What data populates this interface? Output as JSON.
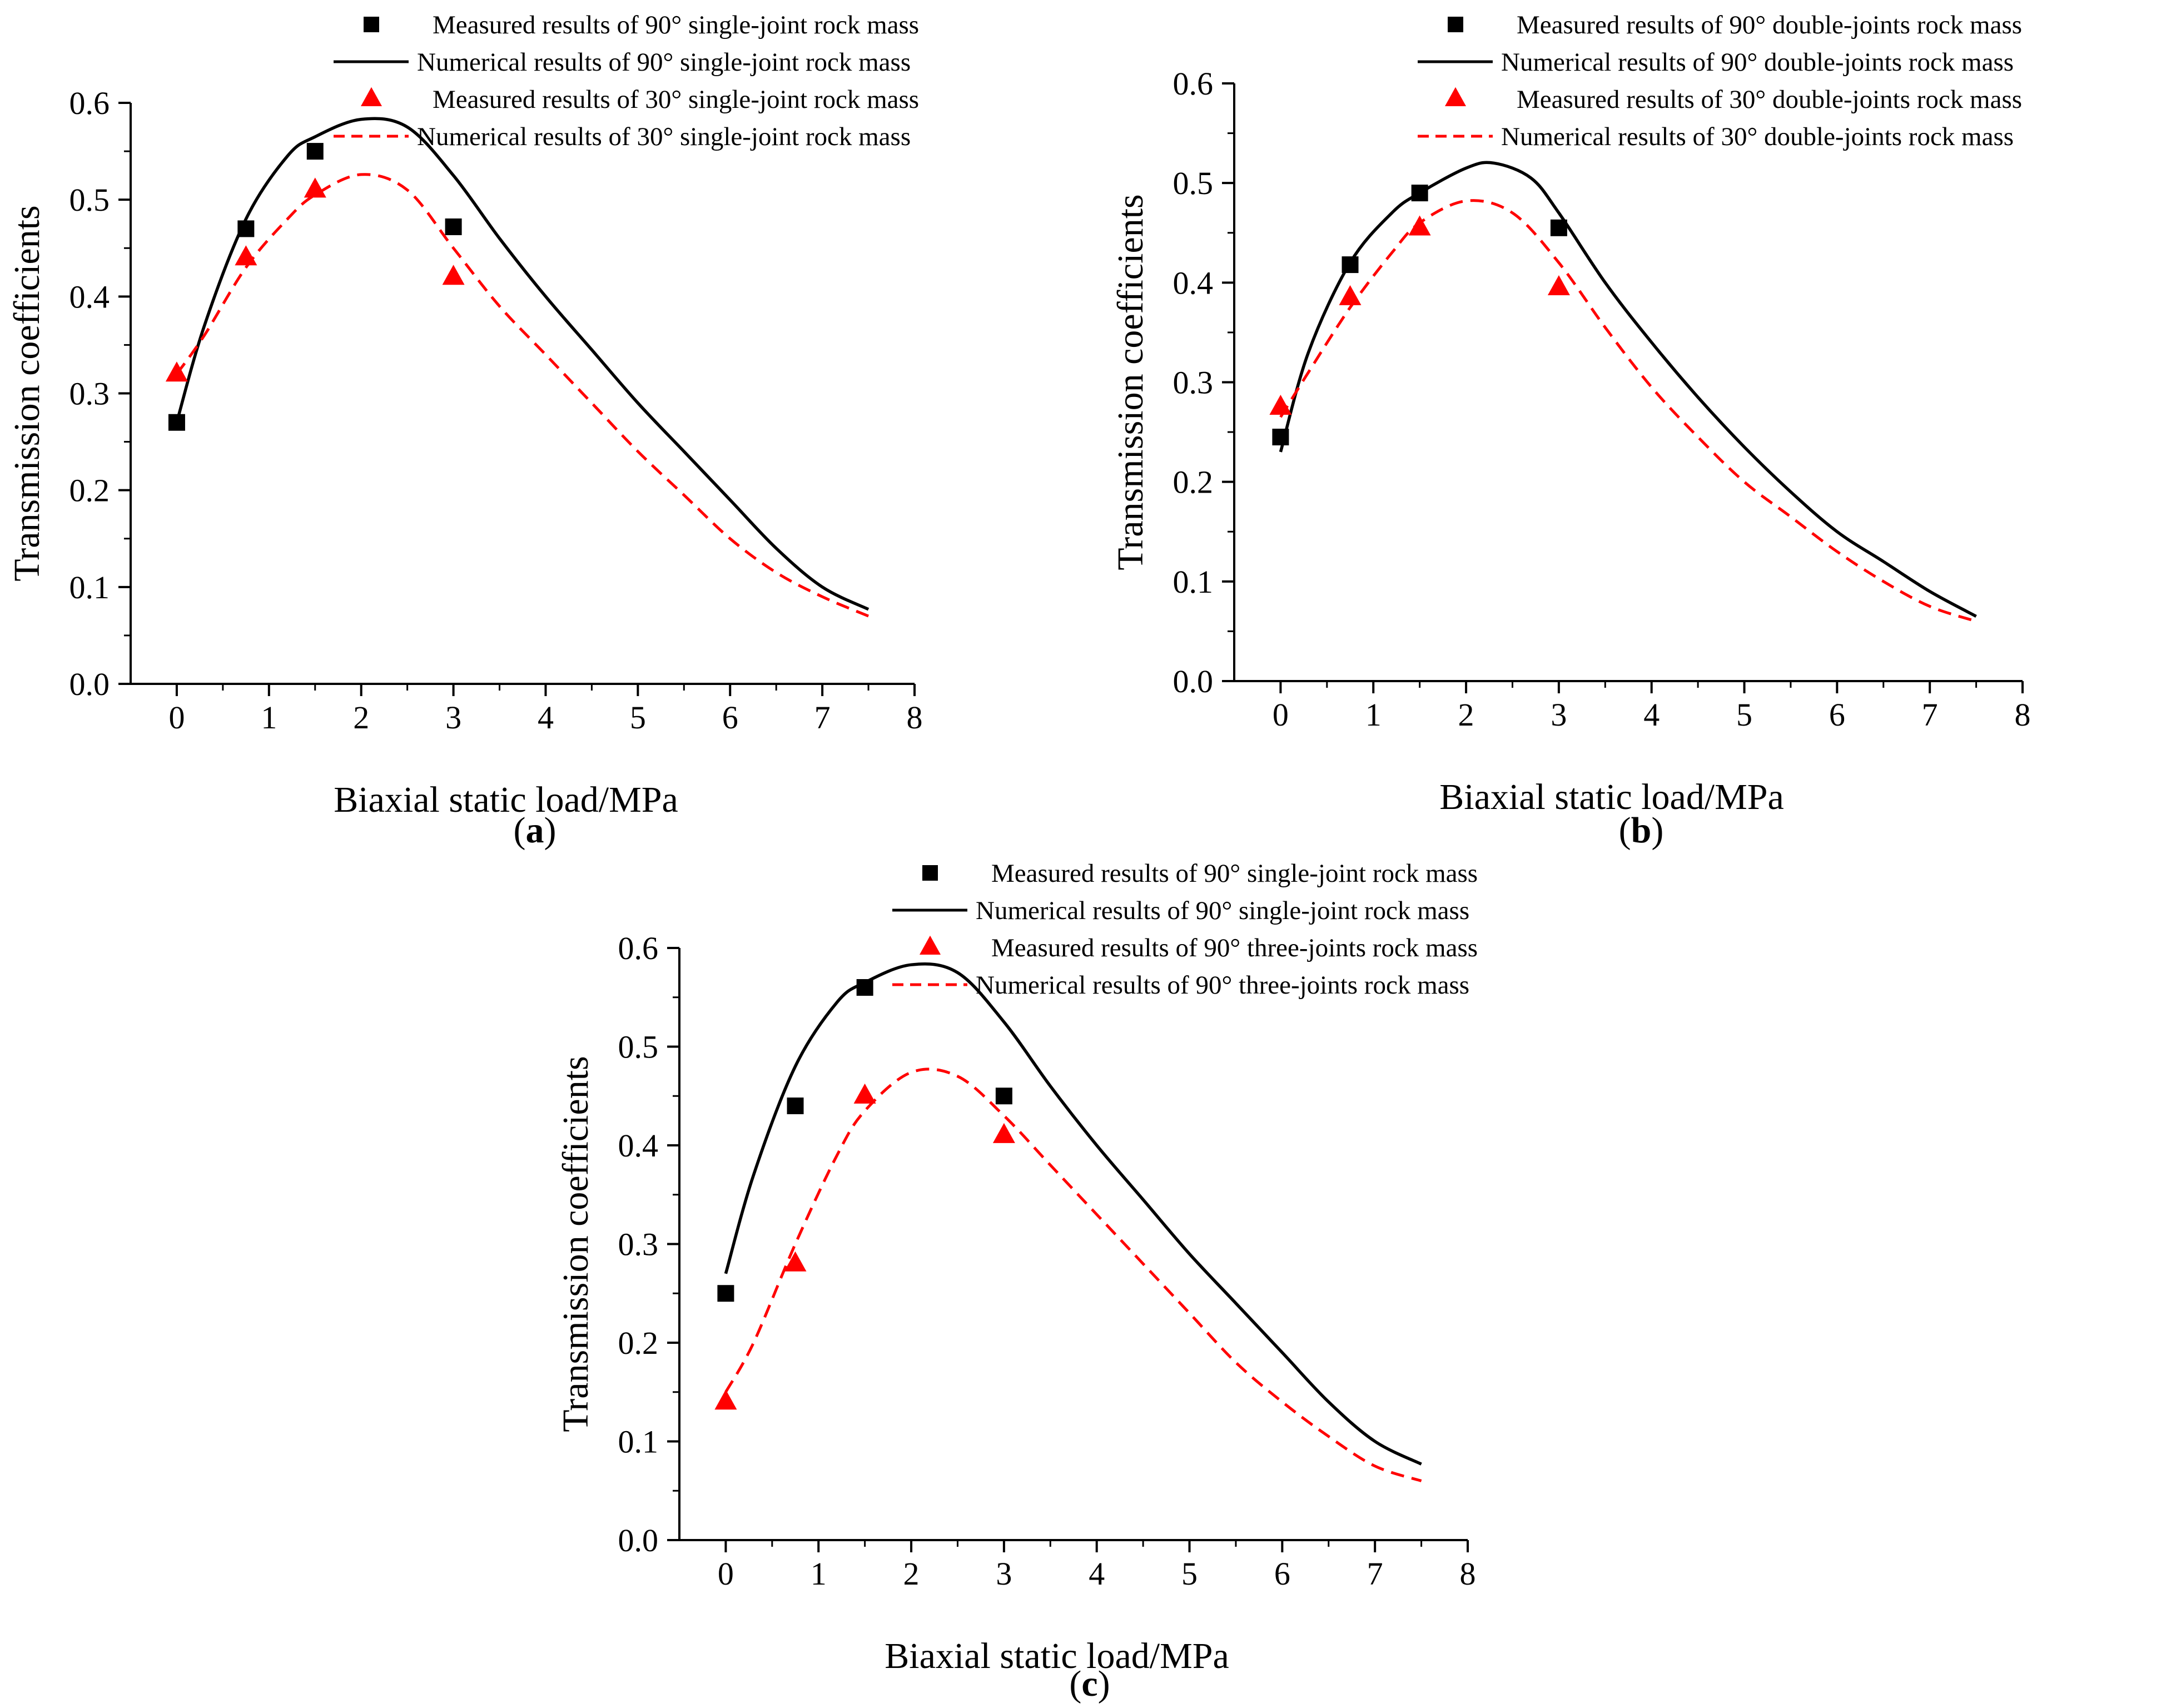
{
  "figure": {
    "chart_data": [
      {
        "type": "line",
        "panel_label": "a",
        "xlabel": "Biaxial static load/MPa",
        "ylabel": "Transmission coefficients",
        "xlim": [
          -0.5,
          8
        ],
        "ylim": [
          0,
          0.6
        ],
        "x_ticks": [
          "0",
          "1",
          "2",
          "3",
          "4",
          "5",
          "6",
          "7",
          "8"
        ],
        "y_ticks": [
          "0.0",
          "0.1",
          "0.2",
          "0.3",
          "0.4",
          "0.5",
          "0.6"
        ],
        "legend_position": "top-right",
        "series": [
          {
            "name": "Measured results of 90° single-joint rock mass",
            "kind": "scatter",
            "marker": "square",
            "color": "#000000",
            "x": [
              0,
              0.75,
              1.5,
              3
            ],
            "y": [
              0.27,
              0.47,
              0.55,
              0.472
            ]
          },
          {
            "name": "Numerical results of 90° single-joint rock mass",
            "kind": "line",
            "style": "solid",
            "color": "#000000",
            "x": [
              0,
              0.3,
              0.75,
              1.2,
              1.5,
              2.0,
              2.5,
              3,
              3.5,
              4,
              4.5,
              5,
              5.5,
              6,
              6.5,
              7,
              7.5
            ],
            "y": [
              0.27,
              0.37,
              0.48,
              0.545,
              0.565,
              0.583,
              0.575,
              0.525,
              0.46,
              0.4,
              0.345,
              0.29,
              0.24,
              0.19,
              0.14,
              0.1,
              0.077
            ]
          },
          {
            "name": "Measured results of 30° single-joint rock mass",
            "kind": "scatter",
            "marker": "triangle",
            "color": "#ff0000",
            "x": [
              0,
              0.75,
              1.5,
              3
            ],
            "y": [
              0.32,
              0.44,
              0.51,
              0.42
            ]
          },
          {
            "name": "Numerical results of 30° single-joint rock mass",
            "kind": "line",
            "style": "dashed",
            "color": "#ff0000",
            "x": [
              0,
              0.3,
              0.75,
              1.2,
              1.5,
              2.0,
              2.5,
              3,
              3.5,
              4,
              4.5,
              5,
              5.5,
              6,
              6.5,
              7,
              7.5
            ],
            "y": [
              0.32,
              0.36,
              0.43,
              0.48,
              0.505,
              0.526,
              0.51,
              0.45,
              0.39,
              0.34,
              0.29,
              0.24,
              0.195,
              0.15,
              0.115,
              0.09,
              0.07
            ]
          }
        ]
      },
      {
        "type": "line",
        "panel_label": "b",
        "xlabel": "Biaxial static load/MPa",
        "ylabel": "Transmission coefficients",
        "xlim": [
          -0.5,
          8
        ],
        "ylim": [
          0,
          0.6
        ],
        "x_ticks": [
          "0",
          "1",
          "2",
          "3",
          "4",
          "5",
          "6",
          "7",
          "8"
        ],
        "y_ticks": [
          "0.0",
          "0.1",
          "0.2",
          "0.3",
          "0.4",
          "0.5",
          "0.6"
        ],
        "legend_position": "top-right",
        "series": [
          {
            "name": "Measured results of 90° double-joints rock mass",
            "kind": "scatter",
            "marker": "square",
            "color": "#000000",
            "x": [
              0,
              0.75,
              1.5,
              3
            ],
            "y": [
              0.245,
              0.418,
              0.49,
              0.455
            ]
          },
          {
            "name": "Numerical results of 90° double-joints rock mass",
            "kind": "line",
            "style": "solid",
            "color": "#000000",
            "x": [
              0,
              0.3,
              0.75,
              1.2,
              1.5,
              2.0,
              2.3,
              2.7,
              3,
              3.5,
              4,
              4.5,
              5,
              5.5,
              6,
              6.5,
              7,
              7.5
            ],
            "y": [
              0.23,
              0.33,
              0.42,
              0.47,
              0.49,
              0.515,
              0.52,
              0.505,
              0.47,
              0.4,
              0.34,
              0.285,
              0.235,
              0.19,
              0.15,
              0.12,
              0.09,
              0.065
            ]
          },
          {
            "name": "Measured results of 30° double-joints rock mass",
            "kind": "scatter",
            "marker": "triangle",
            "color": "#ff0000",
            "x": [
              0,
              0.75,
              1.5,
              3
            ],
            "y": [
              0.275,
              0.385,
              0.455,
              0.395
            ]
          },
          {
            "name": "Numerical results of 30° double-joints rock mass",
            "kind": "line",
            "style": "dashed",
            "color": "#ff0000",
            "x": [
              0,
              0.3,
              0.75,
              1.2,
              1.5,
              2.0,
              2.5,
              3,
              3.5,
              4,
              4.5,
              5,
              5.5,
              6,
              6.5,
              7,
              7.5
            ],
            "y": [
              0.265,
              0.31,
              0.375,
              0.43,
              0.46,
              0.482,
              0.47,
              0.42,
              0.355,
              0.295,
              0.245,
              0.2,
              0.165,
              0.13,
              0.1,
              0.075,
              0.06
            ]
          }
        ]
      },
      {
        "type": "line",
        "panel_label": "c",
        "xlabel": "Biaxial static load/MPa",
        "ylabel": "Transmission coefficients",
        "xlim": [
          -0.5,
          8
        ],
        "ylim": [
          0,
          0.6
        ],
        "x_ticks": [
          "0",
          "1",
          "2",
          "3",
          "4",
          "5",
          "6",
          "7",
          "8"
        ],
        "y_ticks": [
          "0.0",
          "0.1",
          "0.2",
          "0.3",
          "0.4",
          "0.5",
          "0.6"
        ],
        "legend_position": "top-right",
        "series": [
          {
            "name": "Measured results of 90° single-joint rock mass",
            "kind": "scatter",
            "marker": "square",
            "color": "#000000",
            "x": [
              0,
              0.75,
              1.5,
              3
            ],
            "y": [
              0.25,
              0.44,
              0.56,
              0.45
            ]
          },
          {
            "name": "Numerical results of 90° single-joint rock mass",
            "kind": "line",
            "style": "solid",
            "color": "#000000",
            "x": [
              0,
              0.3,
              0.75,
              1.2,
              1.5,
              2.0,
              2.5,
              3,
              3.5,
              4,
              4.5,
              5,
              5.5,
              6,
              6.5,
              7,
              7.5
            ],
            "y": [
              0.27,
              0.37,
              0.48,
              0.545,
              0.565,
              0.583,
              0.575,
              0.525,
              0.46,
              0.4,
              0.345,
              0.29,
              0.24,
              0.19,
              0.14,
              0.1,
              0.077
            ]
          },
          {
            "name": "Measured results of 90° three-joints rock mass",
            "kind": "scatter",
            "marker": "triangle",
            "color": "#ff0000",
            "x": [
              0,
              0.75,
              1.5,
              3
            ],
            "y": [
              0.14,
              0.28,
              0.45,
              0.41
            ]
          },
          {
            "name": "Numerical results of 90° three-joints rock mass",
            "kind": "line",
            "style": "dashed",
            "color": "#ff0000",
            "x": [
              0,
              0.3,
              0.75,
              1.2,
              1.5,
              2.0,
              2.5,
              3,
              3.5,
              4,
              4.5,
              5,
              5.5,
              6,
              6.5,
              7,
              7.5
            ],
            "y": [
              0.15,
              0.2,
              0.3,
              0.39,
              0.435,
              0.474,
              0.47,
              0.43,
              0.38,
              0.33,
              0.28,
              0.23,
              0.18,
              0.14,
              0.105,
              0.075,
              0.06
            ]
          }
        ]
      }
    ]
  }
}
